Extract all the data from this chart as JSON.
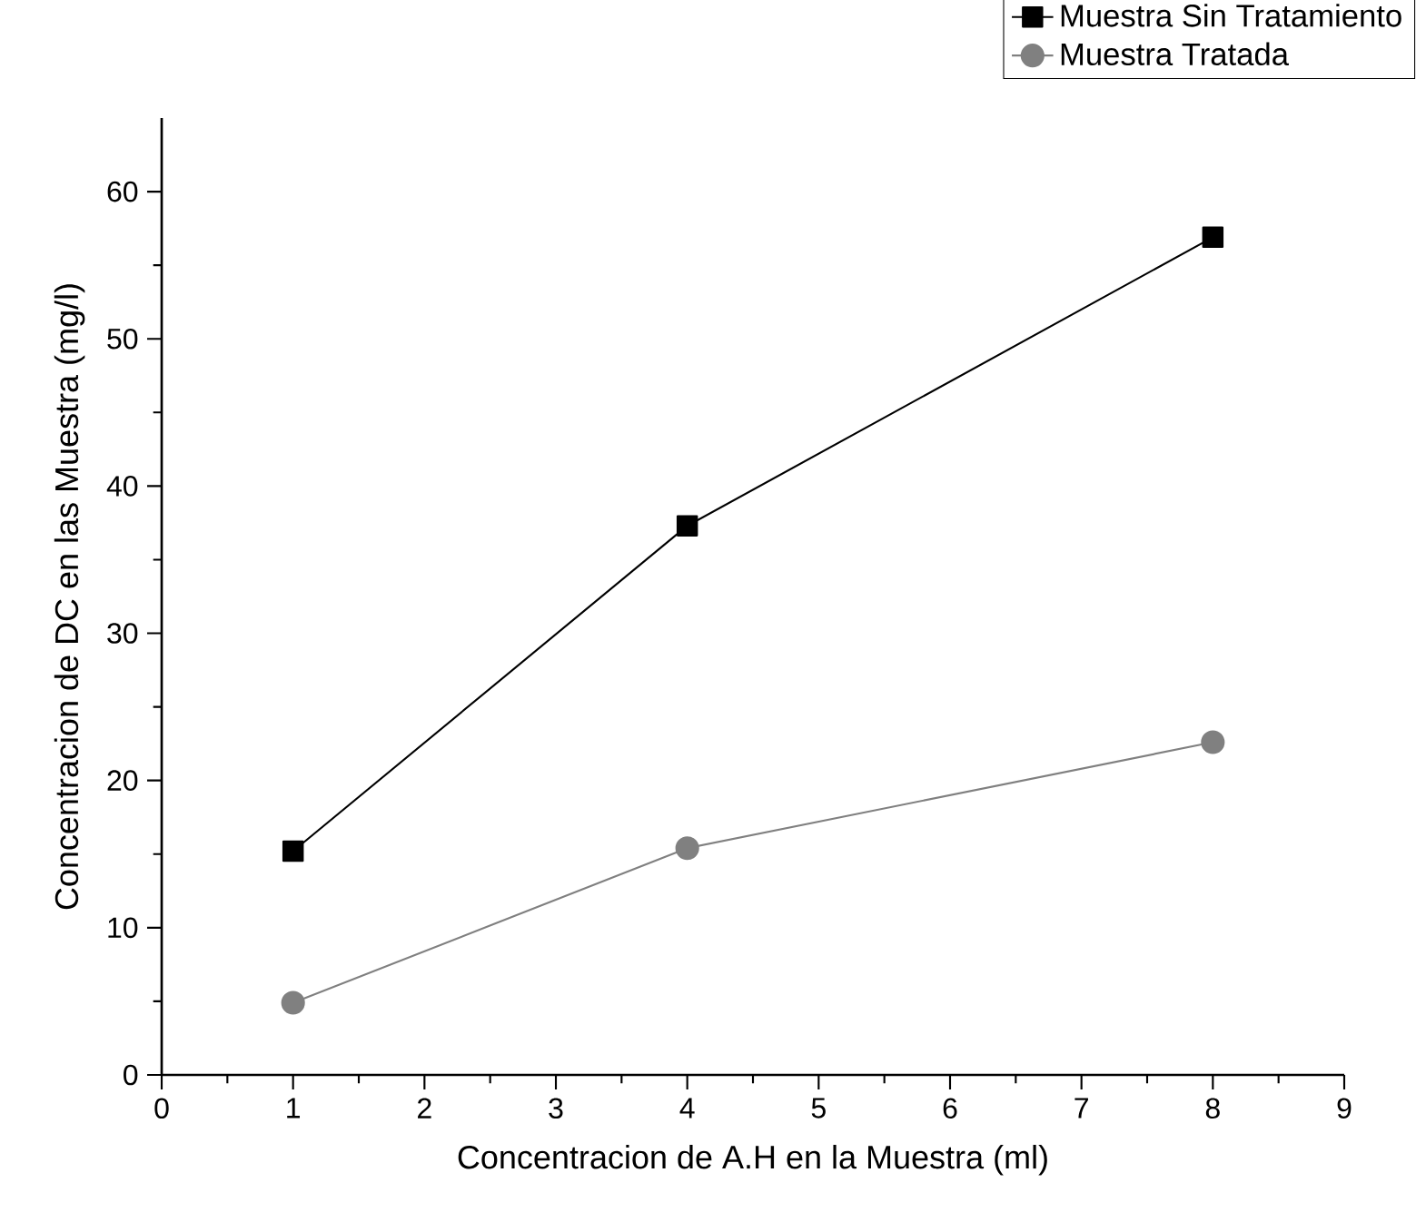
{
  "chart_data": {
    "type": "line",
    "xlabel": "Concentracion de A.H en la Muestra (ml)",
    "ylabel": "Concentracion de DC en las Muestra (mg/l)",
    "x": [
      1,
      4,
      8
    ],
    "series": [
      {
        "name": "Muestra Sin Tratamiento",
        "color": "#000000",
        "marker": "square",
        "values": [
          15.2,
          37.3,
          56.9
        ]
      },
      {
        "name": "Muestra Tratada",
        "color": "#808080",
        "marker": "circle",
        "values": [
          4.9,
          15.4,
          22.6
        ]
      }
    ],
    "xlim": [
      0,
      9
    ],
    "xticks": [
      0,
      1,
      2,
      3,
      4,
      5,
      6,
      7,
      8,
      9
    ],
    "ylim": [
      0,
      65
    ],
    "yticks": [
      0,
      10,
      20,
      30,
      40,
      50,
      60
    ],
    "grid": false,
    "legend": "top right",
    "line_style": "solid"
  }
}
